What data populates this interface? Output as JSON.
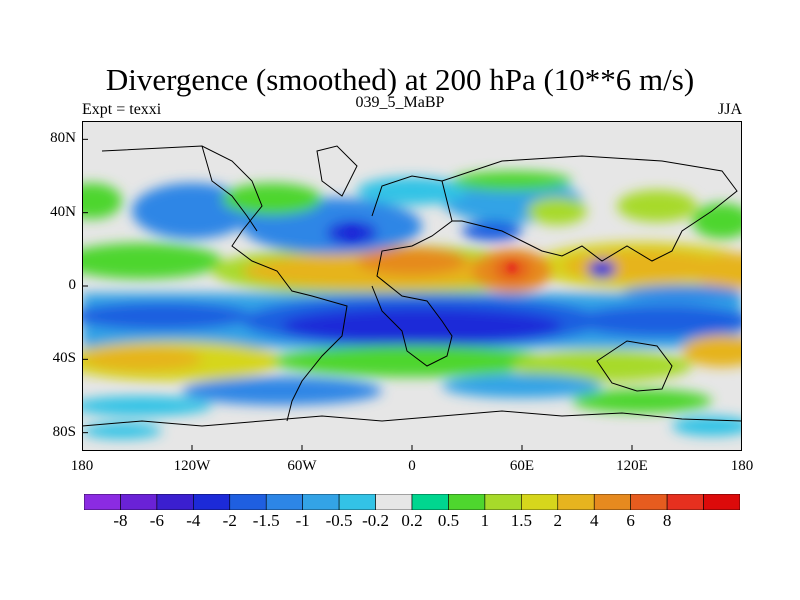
{
  "plot": {
    "title": "Divergence (smoothed) at 200 hPa (10**6 m/s)",
    "left_label": "Expt = texxi",
    "center_label": "039_5_MaBP",
    "right_label": "JJA"
  },
  "axes": {
    "lat_ticks": [
      {
        "label": "80N",
        "lat": 80
      },
      {
        "label": "40N",
        "lat": 40
      },
      {
        "label": "0",
        "lat": 0
      },
      {
        "label": "40S",
        "lat": -40
      },
      {
        "label": "80S",
        "lat": -80
      }
    ],
    "lon_ticks": [
      {
        "label": "180",
        "lon": -180
      },
      {
        "label": "120W",
        "lon": -120
      },
      {
        "label": "60W",
        "lon": -60
      },
      {
        "label": "0",
        "lon": 0
      },
      {
        "label": "60E",
        "lon": 60
      },
      {
        "label": "120E",
        "lon": 120
      },
      {
        "label": "180",
        "lon": 180
      }
    ]
  },
  "colorbar": {
    "boxes": [
      {
        "color": "#8b2be2"
      },
      {
        "color": "#6a22d6"
      },
      {
        "color": "#3b1fcf"
      },
      {
        "color": "#1c2ad8"
      },
      {
        "color": "#1f5fe0"
      },
      {
        "color": "#2d86e6"
      },
      {
        "color": "#33a3e6"
      },
      {
        "color": "#33c3e6"
      },
      {
        "color": "#e6e6e6"
      },
      {
        "color": "#00d68f"
      },
      {
        "color": "#4ed62e"
      },
      {
        "color": "#a7da2a"
      },
      {
        "color": "#d6d61c"
      },
      {
        "color": "#e6b41f"
      },
      {
        "color": "#e68a1f"
      },
      {
        "color": "#e65c1f"
      },
      {
        "color": "#e6301f"
      },
      {
        "color": "#dc0a0a"
      }
    ],
    "labels": [
      "-8",
      "-6",
      "-4",
      "-2",
      "-1.5",
      "-1",
      "-0.5",
      "-0.2",
      "0.2",
      "0.5",
      "1",
      "1.5",
      "2",
      "4",
      "6",
      "8"
    ]
  },
  "map_colors": {
    "background": "#e6e6e6",
    "pos_light": "#00d68f",
    "pos_green": "#4ed62e",
    "pos_yellowgreen": "#a7da2a",
    "pos_yellow": "#d6d61c",
    "pos_orange": "#e6b41f",
    "pos_darkorange": "#e68a1f",
    "pos_red": "#e6301f",
    "neg_light": "#33c3e6",
    "neg_mid": "#2d86e6",
    "neg_blue": "#1f5fe0",
    "neg_dark": "#1c2ad8"
  }
}
